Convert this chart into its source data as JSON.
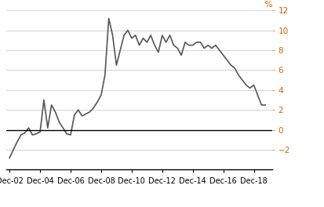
{
  "ylabel": "%",
  "ylim": [
    -4,
    12
  ],
  "yticks": [
    -2,
    0,
    2,
    4,
    6,
    8,
    10,
    12
  ],
  "line_color": "#555555",
  "line_width": 1.2,
  "x_labels": [
    "Dec-02",
    "Dec-04",
    "Dec-06",
    "Dec-08",
    "Dec-10",
    "Dec-12",
    "Dec-14",
    "Dec-16",
    "Dec-18"
  ],
  "x_tick_positions": [
    2002,
    2004,
    2006,
    2008,
    2010,
    2012,
    2014,
    2016,
    2018
  ],
  "xlim": [
    2001.8,
    2019.2
  ],
  "data": {
    "dates": [
      2002.0,
      2002.25,
      2002.5,
      2002.75,
      2003.0,
      2003.25,
      2003.5,
      2003.75,
      2004.0,
      2004.25,
      2004.5,
      2004.75,
      2005.0,
      2005.25,
      2005.5,
      2005.75,
      2006.0,
      2006.25,
      2006.5,
      2006.75,
      2007.0,
      2007.25,
      2007.5,
      2007.75,
      2008.0,
      2008.25,
      2008.5,
      2008.75,
      2009.0,
      2009.25,
      2009.5,
      2009.75,
      2010.0,
      2010.25,
      2010.5,
      2010.75,
      2011.0,
      2011.25,
      2011.5,
      2011.75,
      2012.0,
      2012.25,
      2012.5,
      2012.75,
      2013.0,
      2013.25,
      2013.5,
      2013.75,
      2014.0,
      2014.25,
      2014.5,
      2014.75,
      2015.0,
      2015.25,
      2015.5,
      2015.75,
      2016.0,
      2016.25,
      2016.5,
      2016.75,
      2017.0,
      2017.25,
      2017.5,
      2017.75,
      2018.0,
      2018.25,
      2018.5,
      2018.75
    ],
    "values": [
      -2.8,
      -2.0,
      -1.2,
      -0.5,
      -0.3,
      0.2,
      -0.5,
      -0.4,
      -0.2,
      3.0,
      0.2,
      2.5,
      1.8,
      0.8,
      0.2,
      -0.4,
      -0.5,
      1.5,
      2.0,
      1.4,
      1.6,
      1.8,
      2.2,
      2.8,
      3.5,
      5.5,
      11.2,
      9.5,
      6.5,
      8.0,
      9.5,
      10.0,
      9.2,
      9.5,
      8.5,
      9.2,
      8.8,
      9.5,
      8.5,
      7.8,
      9.5,
      8.8,
      9.5,
      8.5,
      8.2,
      7.5,
      8.8,
      8.5,
      8.5,
      8.8,
      8.8,
      8.2,
      8.5,
      8.2,
      8.5,
      8.0,
      7.5,
      7.0,
      6.5,
      6.2,
      5.5,
      5.0,
      4.5,
      4.2,
      4.5,
      3.5,
      2.5,
      2.5
    ]
  }
}
